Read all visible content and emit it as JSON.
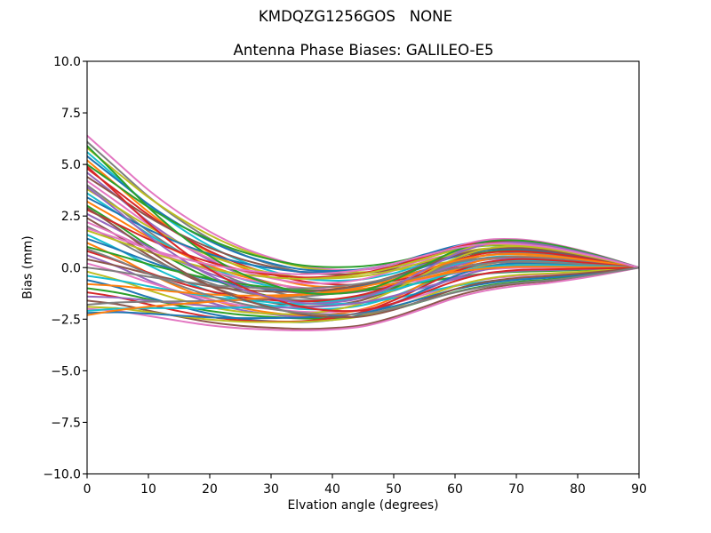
{
  "chart_data": {
    "type": "line",
    "title": "KMDQZG1256GOS   NONE",
    "subtitle": "Antenna Phase Biases: GALILEO-E5",
    "xlabel": "Elvation angle (degrees)",
    "ylabel": "Bias (mm)",
    "xlim": [
      0,
      90
    ],
    "ylim": [
      -10.0,
      10.0
    ],
    "grid": false,
    "legend": "none",
    "background": "#ffffff",
    "axis_color": "#000000",
    "xticks": {
      "values": [
        0,
        10,
        20,
        30,
        40,
        50,
        60,
        70,
        80,
        90
      ],
      "labels": [
        "0",
        "10",
        "20",
        "30",
        "40",
        "50",
        "60",
        "70",
        "80",
        "90"
      ]
    },
    "yticks": {
      "values": [
        10.0,
        7.5,
        5.0,
        2.5,
        0.0,
        -2.5,
        -5.0,
        -7.5,
        -10.0
      ],
      "labels": [
        "10.0",
        "7.5",
        "5.0",
        "2.5",
        "0.0",
        "−2.5",
        "−5.0",
        "−7.5",
        "−10.0"
      ]
    },
    "x": [
      0,
      5,
      10,
      15,
      20,
      25,
      30,
      35,
      40,
      45,
      50,
      55,
      60,
      65,
      70,
      75,
      80,
      85,
      90
    ],
    "model": "Each series value at x[j] is s*decay[j] + m*dip[j] + p*hump[j]; ~52 phase-bias curves spread from +6.4..-2.3 mm at 0 deg, dipping to about -3 mm near 20-40 deg, rising to a +1.45..-0.9 mm band near 65 deg, all converging to 0 mm at 90 deg",
    "basis": {
      "decay": [
        1.0,
        0.82,
        0.65,
        0.51,
        0.39,
        0.29,
        0.21,
        0.145,
        0.1,
        0.065,
        0.04,
        0.025,
        0.012,
        0.005,
        0,
        0,
        0,
        0,
        0
      ],
      "dip": [
        0,
        -0.18,
        -0.4,
        -0.6,
        -0.77,
        -0.89,
        -0.96,
        -1.0,
        -0.98,
        -0.9,
        -0.72,
        -0.48,
        -0.24,
        -0.08,
        -0.01,
        0,
        0,
        0,
        0
      ],
      "hump": [
        0,
        0,
        0,
        0,
        0.02,
        0.05,
        0.1,
        0.17,
        0.28,
        0.42,
        0.58,
        0.76,
        0.92,
        1.0,
        0.96,
        0.83,
        0.6,
        0.32,
        0
      ]
    },
    "color_cycle": [
      "#1f77b4",
      "#ff7f0e",
      "#2ca02c",
      "#d62728",
      "#9467bd",
      "#8c564b",
      "#e377c2",
      "#7f7f7f",
      "#bcbd22",
      "#17becf"
    ],
    "line_width": 2,
    "series": [
      {
        "s": 6.4,
        "m": 1.0,
        "p": 0.9,
        "color": "#e377c2"
      },
      {
        "s": 6.1,
        "m": 1.3,
        "p": 1.2,
        "color": "#7f7f7f"
      },
      {
        "s": 5.8,
        "m": 0.9,
        "p": 0.5,
        "color": "#bcbd22"
      },
      {
        "s": 5.6,
        "m": 1.5,
        "p": 1.0,
        "color": "#17becf"
      },
      {
        "s": 5.4,
        "m": 1.1,
        "p": 1.35,
        "color": "#1f77b4"
      },
      {
        "s": 5.2,
        "m": 1.7,
        "p": 0.7,
        "color": "#ff7f0e"
      },
      {
        "s": 5.0,
        "m": 0.8,
        "p": 1.1,
        "color": "#2ca02c"
      },
      {
        "s": 4.8,
        "m": 1.4,
        "p": 0.3,
        "color": "#d62728"
      },
      {
        "s": 4.6,
        "m": 1.9,
        "p": 1.25,
        "color": "#9467bd"
      },
      {
        "s": 4.4,
        "m": 1.0,
        "p": 0.8,
        "color": "#8c564b"
      },
      {
        "s": 4.2,
        "m": 1.6,
        "p": 1.45,
        "color": "#e377c2"
      },
      {
        "s": 4.0,
        "m": 2.1,
        "p": 0.4,
        "color": "#7f7f7f"
      },
      {
        "s": 3.8,
        "m": 1.2,
        "p": 1.0,
        "color": "#bcbd22"
      },
      {
        "s": 3.6,
        "m": 1.8,
        "p": 0.6,
        "color": "#17becf"
      },
      {
        "s": 3.4,
        "m": 0.9,
        "p": 1.2,
        "color": "#1f77b4"
      },
      {
        "s": 3.2,
        "m": 1.5,
        "p": 0.2,
        "color": "#ff7f0e"
      },
      {
        "s": 3.0,
        "m": 2.2,
        "p": 0.9,
        "color": "#2ca02c"
      },
      {
        "s": 2.8,
        "m": 1.1,
        "p": 1.3,
        "color": "#d62728"
      },
      {
        "s": 2.6,
        "m": 1.7,
        "p": 0.5,
        "color": "#9467bd"
      },
      {
        "s": 2.4,
        "m": 2.4,
        "p": 1.05,
        "color": "#8c564b"
      },
      {
        "s": 2.2,
        "m": 1.3,
        "p": 0.0,
        "color": "#e377c2"
      },
      {
        "s": 2.0,
        "m": 2.0,
        "p": 0.75,
        "color": "#7f7f7f"
      },
      {
        "s": 1.8,
        "m": 1.0,
        "p": 1.15,
        "color": "#bcbd22"
      },
      {
        "s": 1.6,
        "m": 2.3,
        "p": 0.35,
        "color": "#17becf"
      },
      {
        "s": 1.4,
        "m": 1.5,
        "p": 0.95,
        "color": "#1f77b4"
      },
      {
        "s": 1.2,
        "m": 2.6,
        "p": 0.6,
        "color": "#ff7f0e"
      },
      {
        "s": 1.0,
        "m": 1.2,
        "p": -0.2,
        "color": "#2ca02c"
      },
      {
        "s": 0.8,
        "m": 1.9,
        "p": 0.85,
        "color": "#d62728"
      },
      {
        "s": 0.6,
        "m": 2.5,
        "p": 0.1,
        "color": "#9467bd"
      },
      {
        "s": 0.4,
        "m": 1.4,
        "p": 1.0,
        "color": "#8c564b"
      },
      {
        "s": 0.2,
        "m": 2.1,
        "p": -0.4,
        "color": "#e377c2"
      },
      {
        "s": 0.0,
        "m": 1.1,
        "p": 0.55,
        "color": "#7f7f7f"
      },
      {
        "s": -0.2,
        "m": 2.4,
        "p": 1.1,
        "color": "#bcbd22"
      },
      {
        "s": -0.4,
        "m": 1.6,
        "p": -0.55,
        "color": "#17becf"
      },
      {
        "s": -0.6,
        "m": 2.6,
        "p": 0.25,
        "color": "#1f77b4"
      },
      {
        "s": -0.8,
        "m": 1.3,
        "p": 0.7,
        "color": "#ff7f0e"
      },
      {
        "s": -1.0,
        "m": 2.2,
        "p": -0.7,
        "color": "#2ca02c"
      },
      {
        "s": -1.2,
        "m": 2.5,
        "p": 0.45,
        "color": "#d62728"
      },
      {
        "s": -1.4,
        "m": 1.7,
        "p": -0.15,
        "color": "#9467bd"
      },
      {
        "s": -1.6,
        "m": 2.6,
        "p": -0.8,
        "color": "#8c564b"
      },
      {
        "s": -2.0,
        "m": 2.6,
        "p": -0.9,
        "color": "#e377c2"
      },
      {
        "s": -1.8,
        "m": 1.2,
        "p": 0.3,
        "color": "#7f7f7f"
      },
      {
        "s": -1.9,
        "m": 2.3,
        "p": -0.35,
        "color": "#bcbd22"
      },
      {
        "s": -2.1,
        "m": 1.5,
        "p": 0.15,
        "color": "#17becf"
      },
      {
        "s": -2.2,
        "m": 2.0,
        "p": -0.6,
        "color": "#1f77b4"
      },
      {
        "s": -2.3,
        "m": 1.0,
        "p": 0.05,
        "color": "#ff7f0e"
      },
      {
        "s": 5.9,
        "m": 2.3,
        "p": 1.4,
        "color": "#2ca02c"
      },
      {
        "s": 4.9,
        "m": 2.6,
        "p": -0.1,
        "color": "#d62728"
      },
      {
        "s": 3.9,
        "m": 2.5,
        "p": 1.3,
        "color": "#9467bd"
      },
      {
        "s": 2.9,
        "m": 2.6,
        "p": -0.5,
        "color": "#8c564b"
      },
      {
        "s": 1.9,
        "m": 0.8,
        "p": 1.2,
        "color": "#e377c2"
      },
      {
        "s": 0.9,
        "m": 2.2,
        "p": -0.75,
        "color": "#7f7f7f"
      }
    ]
  }
}
